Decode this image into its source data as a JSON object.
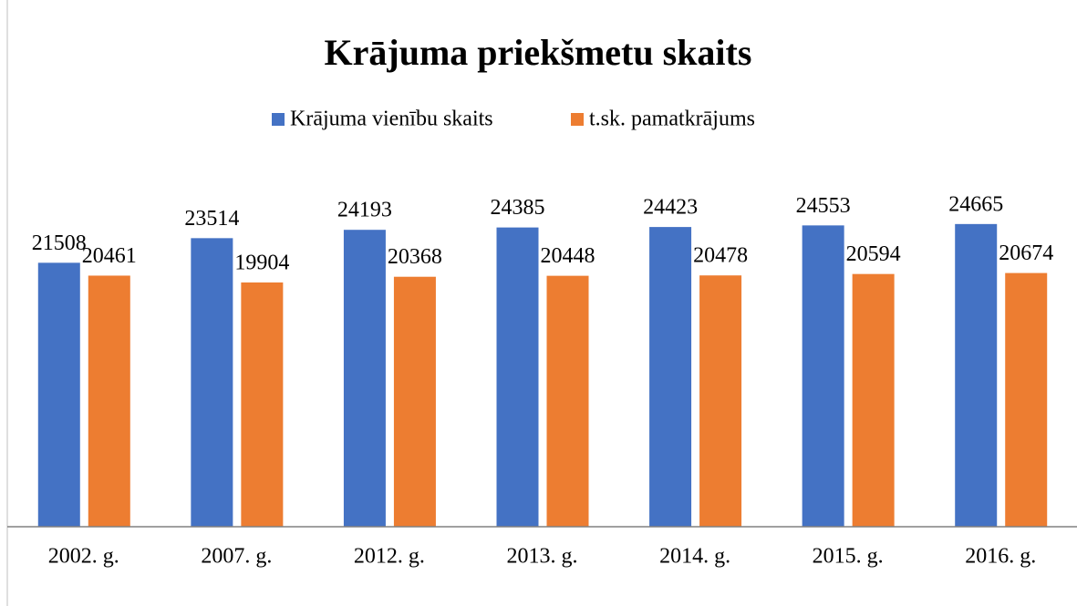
{
  "chart_data": {
    "type": "bar",
    "title": "Krājuma priekšmetu skaits",
    "categories": [
      "2002. g.",
      "2007. g.",
      "2012. g.",
      "2013. g.",
      "2014. g.",
      "2015. g.",
      "2016. g."
    ],
    "series": [
      {
        "name": "Krājuma vienību skaits",
        "color": "#4472c4",
        "values": [
          21508,
          23514,
          24193,
          24385,
          24423,
          24553,
          24665
        ]
      },
      {
        "name": "t.sk. pamatkrājums",
        "color": "#ed7d31",
        "values": [
          20461,
          19904,
          20368,
          20448,
          20478,
          20594,
          20674
        ]
      }
    ],
    "ylim": [
      0,
      30000
    ],
    "legend": "top"
  }
}
